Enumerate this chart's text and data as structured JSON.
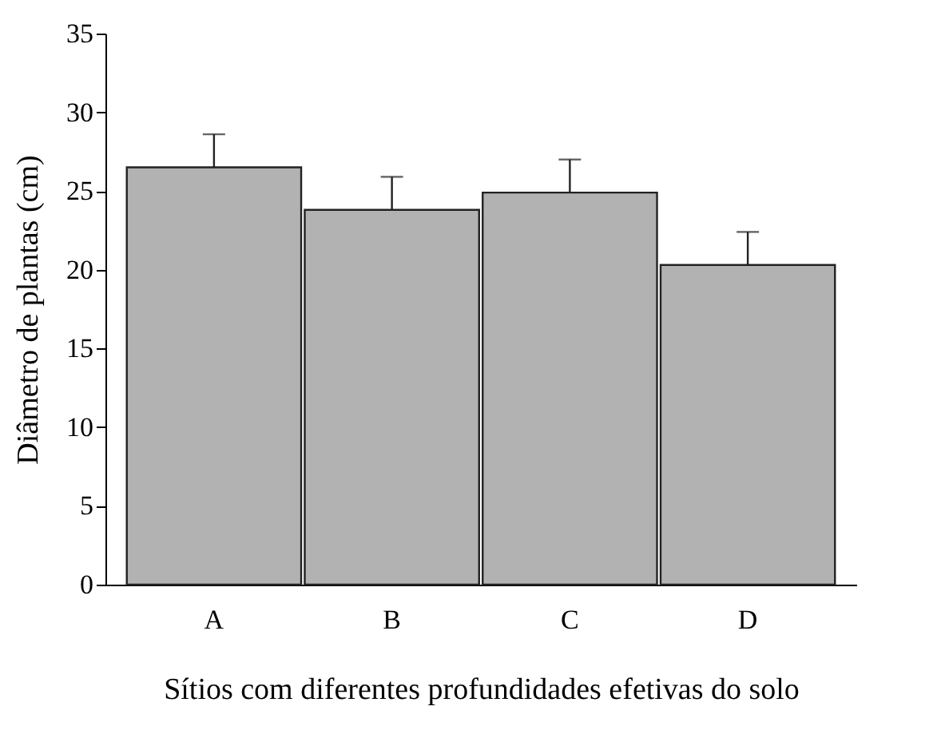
{
  "chart_data": {
    "type": "bar",
    "xlabel": "Sítios com diferentes profundidades efetivas do solo",
    "ylabel": "Diâmetro de plantas (cm)",
    "categories": [
      "A",
      "B",
      "C",
      "D"
    ],
    "values": [
      26.5,
      23.8,
      24.9,
      20.3
    ],
    "errors": [
      2.1,
      2.1,
      2.1,
      2.1
    ],
    "color": "#b2b2b2",
    "ylim": [
      0,
      35
    ],
    "yticks": [
      0,
      5,
      10,
      15,
      20,
      25,
      30,
      35
    ],
    "grid": false
  }
}
